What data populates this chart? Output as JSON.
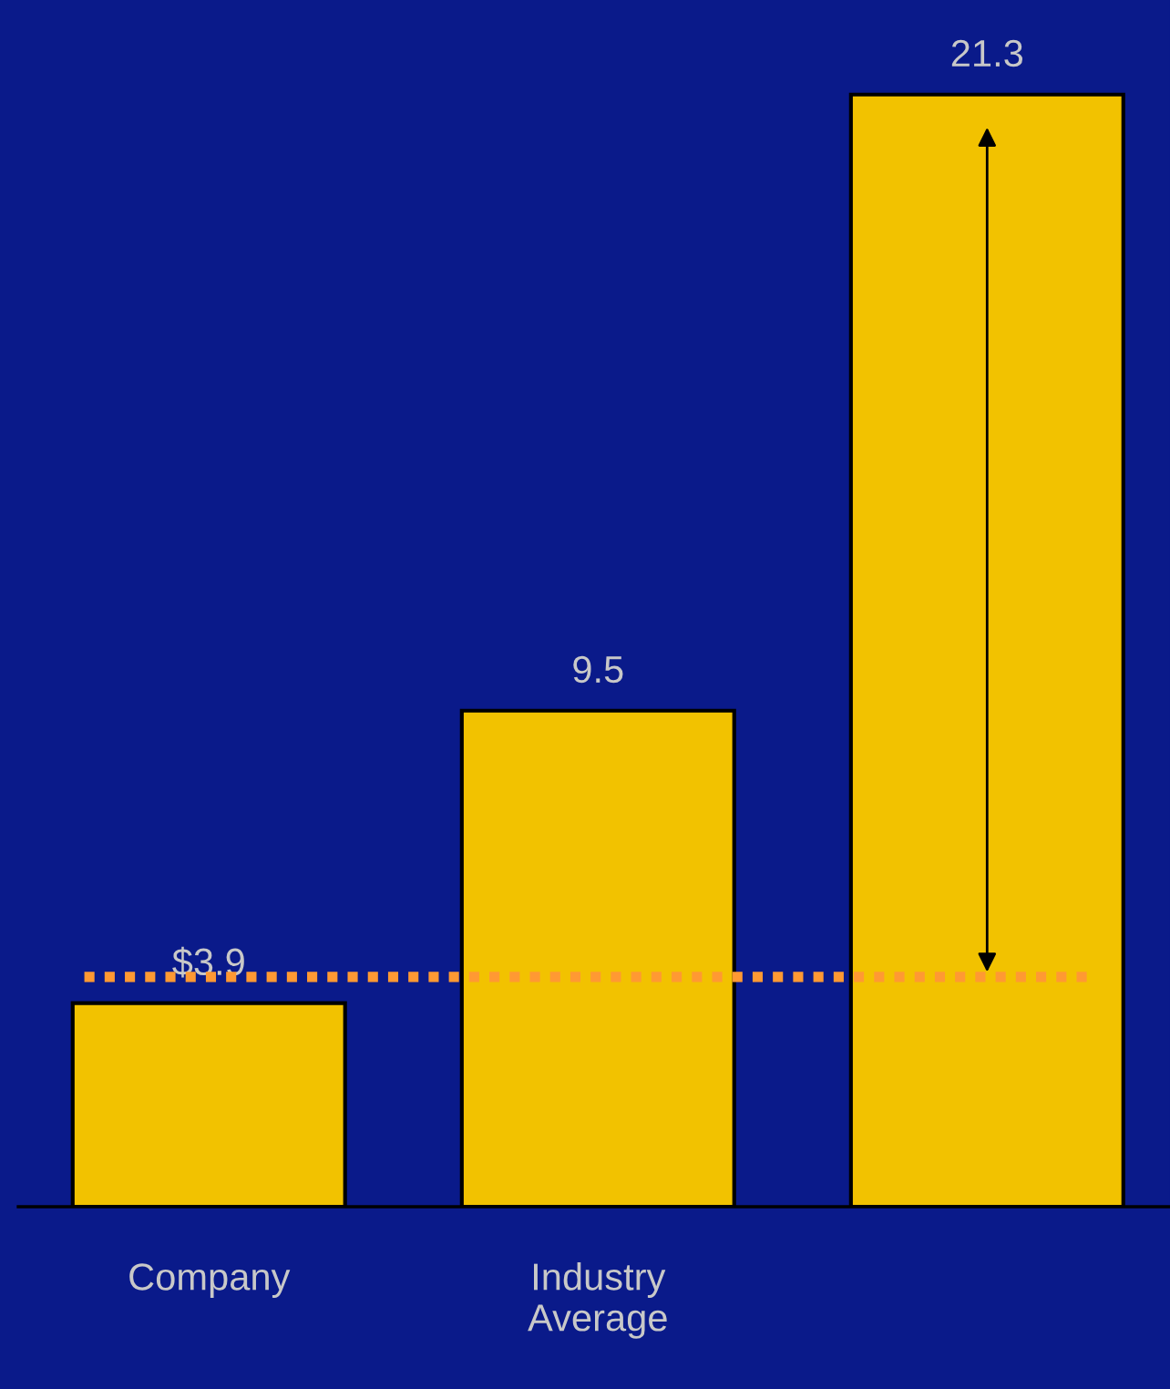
{
  "chart_data": {
    "type": "bar",
    "categories": [
      "Company",
      "Industry Average",
      null
    ],
    "values": [
      3.9,
      9.5,
      21.3
    ],
    "color": "#f2c200",
    "value_labels": [
      "$3.9",
      "9.5",
      "21.3"
    ],
    "ref_lines": [
      {
        "axis": "y",
        "value": 4.4,
        "color": "#ff9933",
        "line_style": "dotted"
      }
    ],
    "grid": false,
    "legend": false
  }
}
